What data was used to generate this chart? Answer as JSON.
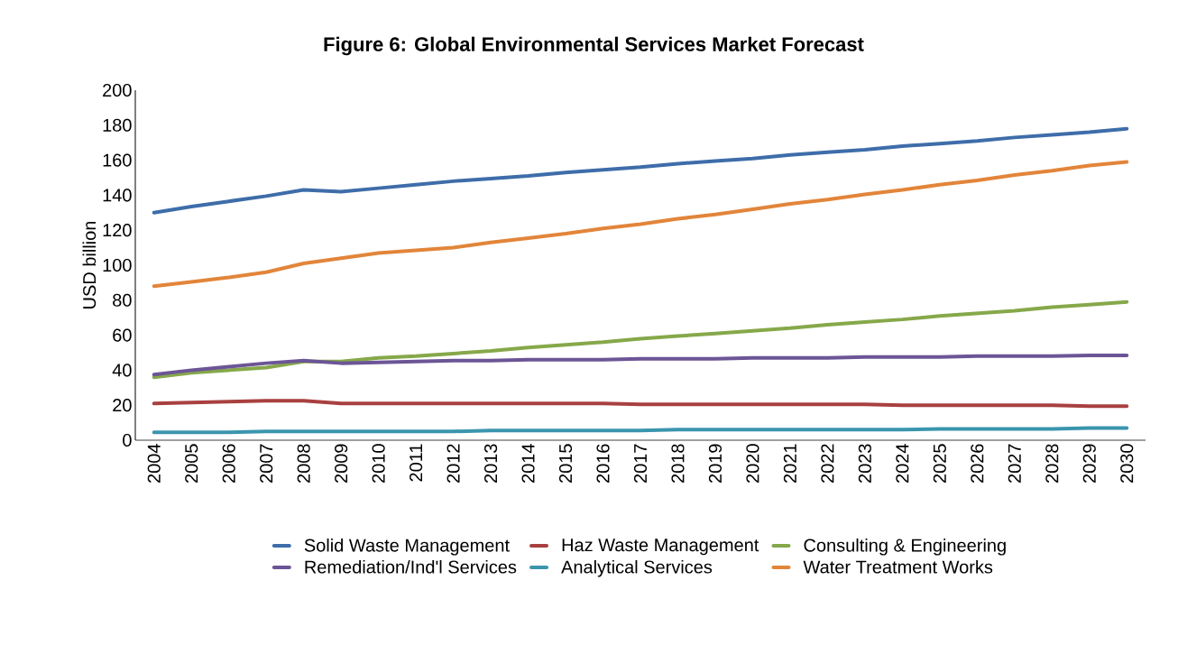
{
  "chart_data": {
    "type": "line",
    "title": "Figure  6: Global Environmental Services Market Forecast",
    "ylabel": "USD billion",
    "categories": [
      "2004",
      "2005",
      "2006",
      "2007",
      "2008",
      "2009",
      "2010",
      "2011",
      "2012",
      "2013",
      "2014",
      "2015",
      "2016",
      "2017",
      "2018",
      "2019",
      "2020",
      "2021",
      "2022",
      "2023",
      "2024",
      "2025",
      "2026",
      "2027",
      "2028",
      "2029",
      "2030"
    ],
    "ylim": [
      0,
      200
    ],
    "yticks": [
      0,
      20,
      40,
      60,
      80,
      100,
      120,
      140,
      160,
      180,
      200
    ],
    "legend": "bottom",
    "line_style": "solid",
    "series": [
      {
        "name": "Solid Waste Management",
        "color": "#3e6da9",
        "values": [
          130,
          133.5,
          136.5,
          139.5,
          143,
          142,
          144,
          146,
          148,
          149.5,
          151,
          153,
          154.5,
          156,
          158,
          159.5,
          161,
          163,
          164.5,
          166,
          168,
          169.5,
          171,
          173,
          174.5,
          176,
          178
        ]
      },
      {
        "name": "Haz Waste Management",
        "color": "#a94040",
        "values": [
          21,
          21.5,
          22,
          22.5,
          22.5,
          21,
          21,
          21,
          21,
          21,
          21,
          21,
          21,
          20.5,
          20.5,
          20.5,
          20.5,
          20.5,
          20.5,
          20.5,
          20,
          20,
          20,
          20,
          20,
          19.5,
          19.5
        ]
      },
      {
        "name": "Consulting & Engineering",
        "color": "#86a84a",
        "values": [
          36,
          38.5,
          40,
          41.5,
          45,
          45,
          47,
          48,
          49.5,
          51,
          53,
          54.5,
          56,
          58,
          59.5,
          61,
          62.5,
          64,
          66,
          67.5,
          69,
          71,
          72.5,
          74,
          76,
          77.5,
          79
        ]
      },
      {
        "name": "Remediation/Ind'l Services",
        "color": "#6c5596",
        "values": [
          37.5,
          40,
          42,
          44,
          45.5,
          44,
          44.5,
          45,
          45.5,
          45.5,
          46,
          46,
          46,
          46.5,
          46.5,
          46.5,
          47,
          47,
          47,
          47.5,
          47.5,
          47.5,
          48,
          48,
          48,
          48.5,
          48.5
        ]
      },
      {
        "name": "Analytical Services",
        "color": "#3b95ae",
        "values": [
          4.5,
          4.5,
          4.5,
          5,
          5,
          5,
          5,
          5,
          5,
          5.5,
          5.5,
          5.5,
          5.5,
          5.5,
          6,
          6,
          6,
          6,
          6,
          6,
          6,
          6.5,
          6.5,
          6.5,
          6.5,
          7,
          7
        ]
      },
      {
        "name": "Water Treatment Works",
        "color": "#e2853a",
        "values": [
          88,
          90.5,
          93,
          96,
          101,
          104,
          107,
          108.5,
          110,
          113,
          115.5,
          118,
          121,
          123.5,
          126.5,
          129,
          132,
          135,
          137.5,
          140.5,
          143,
          146,
          148.5,
          151.5,
          154,
          157,
          159
        ]
      }
    ]
  }
}
